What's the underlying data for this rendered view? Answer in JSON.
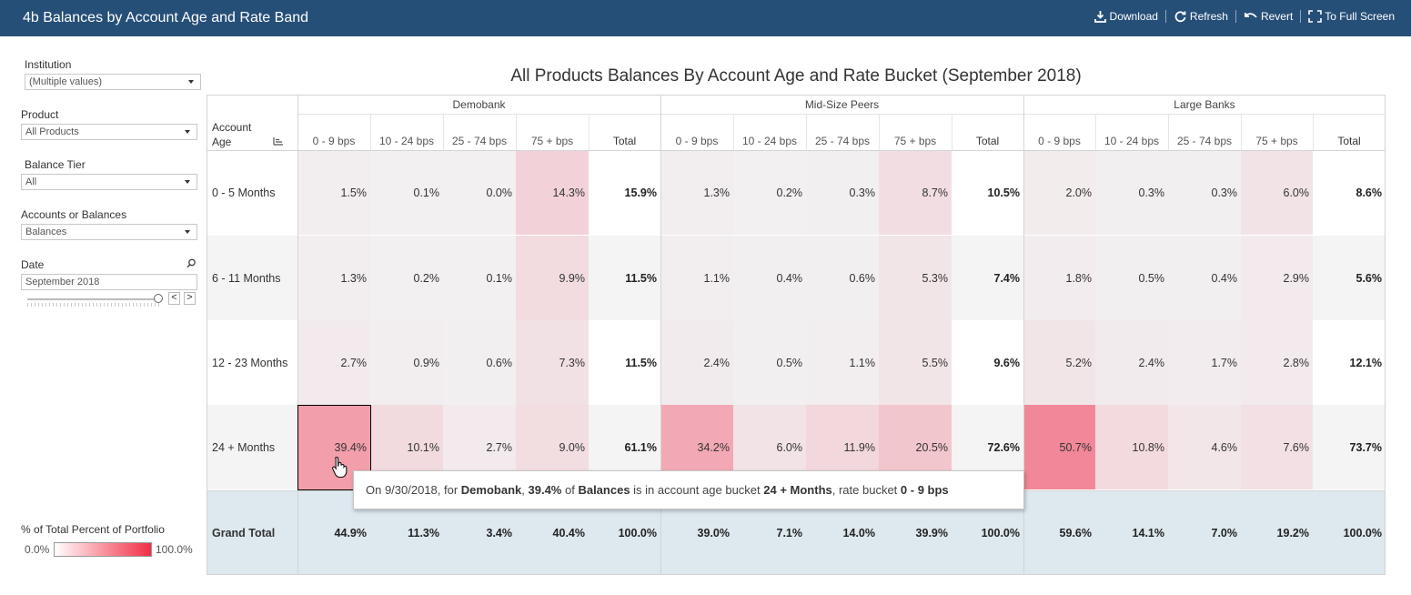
{
  "app": {
    "title": "4b Balances by Account Age and Rate Band",
    "toolbar": {
      "download": "Download",
      "refresh": "Refresh",
      "revert": "Revert",
      "full_screen": "To Full Screen"
    }
  },
  "filters": {
    "institution": {
      "label": "Institution",
      "value": "(Multiple values)"
    },
    "product": {
      "label": "Product",
      "value": "All Products"
    },
    "balance_tier": {
      "label": "Balance Tier",
      "value": "All"
    },
    "accounts_or_balances": {
      "label": "Accounts or Balances",
      "value": "Balances"
    },
    "date": {
      "label": "Date",
      "value": "September 2018",
      "prev": "<",
      "next": ">"
    }
  },
  "legend": {
    "title": "% of Total Percent of Portfolio",
    "min": "0.0%",
    "max": "100.0%",
    "colors": {
      "low": "#ffffff",
      "high": "#f12d44"
    }
  },
  "table": {
    "title": "All Products Balances By Account Age and Rate Bucket (September 2018)",
    "row_header_label_1": "Account",
    "row_header_label_2": "Age",
    "groups": [
      "Demobank",
      "Mid-Size Peers",
      "Large Banks"
    ],
    "columns": [
      "0 - 9 bps",
      "10 - 24 bps",
      "25 - 74 bps",
      "75 + bps",
      "Total"
    ],
    "rows": [
      {
        "label": "0 - 5 Months",
        "values": [
          "1.5%",
          "0.1%",
          "0.0%",
          "14.3%",
          "15.9%",
          "1.3%",
          "0.2%",
          "0.3%",
          "8.7%",
          "10.5%",
          "2.0%",
          "0.3%",
          "0.3%",
          "6.0%",
          "8.6%"
        ],
        "levels": [
          1.5,
          0.1,
          0.0,
          14.3,
          15.9,
          1.3,
          0.2,
          0.3,
          8.7,
          10.5,
          2.0,
          0.3,
          0.3,
          6.0,
          8.6
        ]
      },
      {
        "label": "6 - 11 Months",
        "values": [
          "1.3%",
          "0.2%",
          "0.1%",
          "9.9%",
          "11.5%",
          "1.1%",
          "0.4%",
          "0.6%",
          "5.3%",
          "7.4%",
          "1.8%",
          "0.5%",
          "0.4%",
          "2.9%",
          "5.6%"
        ],
        "levels": [
          1.3,
          0.2,
          0.1,
          9.9,
          11.5,
          1.1,
          0.4,
          0.6,
          5.3,
          7.4,
          1.8,
          0.5,
          0.4,
          2.9,
          5.6
        ]
      },
      {
        "label": "12 - 23 Months",
        "values": [
          "2.7%",
          "0.9%",
          "0.6%",
          "7.3%",
          "11.5%",
          "2.4%",
          "0.5%",
          "1.1%",
          "5.5%",
          "9.6%",
          "5.2%",
          "2.4%",
          "1.7%",
          "2.8%",
          "12.1%"
        ],
        "levels": [
          2.7,
          0.9,
          0.6,
          7.3,
          11.5,
          2.4,
          0.5,
          1.1,
          5.5,
          9.6,
          5.2,
          2.4,
          1.7,
          2.8,
          12.1
        ]
      },
      {
        "label": "24 + Months",
        "values": [
          "39.4%",
          "10.1%",
          "2.7%",
          "9.0%",
          "61.1%",
          "34.2%",
          "6.0%",
          "11.9%",
          "20.5%",
          "72.6%",
          "50.7%",
          "10.8%",
          "4.6%",
          "7.6%",
          "73.7%"
        ],
        "levels": [
          39.4,
          10.1,
          2.7,
          9.0,
          61.1,
          34.2,
          6.0,
          11.9,
          20.5,
          72.6,
          50.7,
          10.8,
          4.6,
          7.6,
          73.7
        ]
      }
    ],
    "grand_total": {
      "label": "Grand Total",
      "values": [
        "44.9%",
        "11.3%",
        "3.4%",
        "40.4%",
        "100.0%",
        "39.0%",
        "7.1%",
        "14.0%",
        "39.9%",
        "100.0%",
        "59.6%",
        "14.1%",
        "7.0%",
        "19.2%",
        "100.0%"
      ]
    },
    "selected_cell": {
      "row": 3,
      "col": 0
    }
  },
  "tooltip": {
    "t1": "On 9/30/2018, for ",
    "institution": "Demobank",
    "t2": ", ",
    "value": "39.4%",
    "t3": " of ",
    "measure": "Balances",
    "t4": " is in account age bucket ",
    "age": "24 + Months",
    "t5": ", rate bucket ",
    "rate": "0 - 9 bps"
  }
}
